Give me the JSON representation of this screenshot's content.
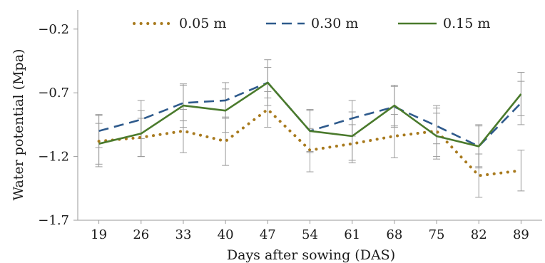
{
  "chart_data": {
    "type": "line",
    "xlabel": "Days after sowing (DAS)",
    "ylabel": "Water potential (Mpa)",
    "categories": [
      "19",
      "26",
      "33",
      "40",
      "47",
      "54",
      "61",
      "68",
      "75",
      "82",
      "89"
    ],
    "yticks": [
      -1.7,
      -1.2,
      -0.7,
      -0.2
    ],
    "ytick_labels": [
      "−1.7",
      "−1.2",
      "−0.7",
      "−0.2"
    ],
    "ylim": [
      -1.7,
      -0.05
    ],
    "grid": false,
    "legend_position": "top-center",
    "series": [
      {
        "name": "0.05 m",
        "style": "dotted",
        "color": "#a87a1e",
        "values": [
          -1.08,
          -1.05,
          -1.0,
          -1.08,
          -0.83,
          -1.15,
          -1.1,
          -1.04,
          -1.0,
          -1.35,
          -1.31
        ],
        "error": [
          0.2,
          0.15,
          0.17,
          0.19,
          0.14,
          0.17,
          0.15,
          0.17,
          0.2,
          0.17,
          0.16
        ]
      },
      {
        "name": "0.30 m",
        "style": "dashed",
        "color": "#2e5a8c",
        "values": [
          -1.0,
          -0.91,
          -0.78,
          -0.76,
          -0.62,
          -1.0,
          -0.9,
          -0.81,
          -0.96,
          -1.12,
          -0.78
        ],
        "error": [
          0.13,
          0.15,
          0.14,
          0.14,
          0.12,
          0.16,
          0.14,
          0.16,
          0.14,
          0.16,
          0.17
        ]
      },
      {
        "name": "0.15 m",
        "style": "solid",
        "color": "#4a7a2c",
        "values": [
          -1.1,
          -1.02,
          -0.8,
          -0.84,
          -0.62,
          -1.0,
          -1.04,
          -0.8,
          -1.04,
          -1.12,
          -0.71
        ],
        "error": [
          0.16,
          0.18,
          0.17,
          0.17,
          0.18,
          0.17,
          0.19,
          0.16,
          0.18,
          0.17,
          0.17
        ]
      }
    ],
    "legend_order": [
      0,
      1,
      2
    ]
  }
}
